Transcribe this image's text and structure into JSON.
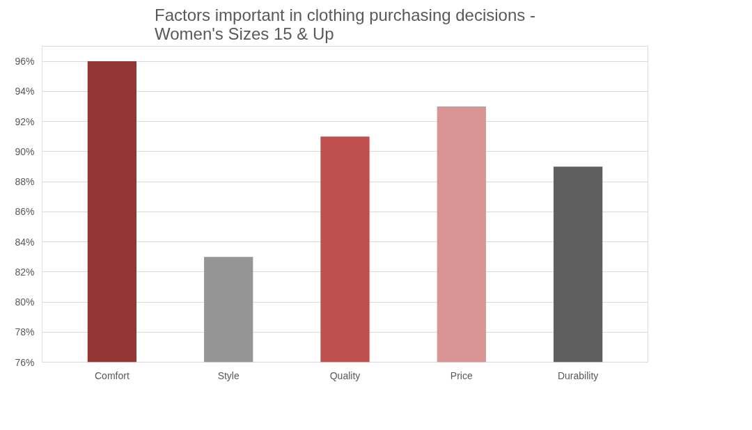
{
  "chart_data": {
    "type": "bar",
    "title": "Factors important in clothing purchasing decisions -\nWomen's Sizes 15 & Up",
    "categories": [
      "Comfort",
      "Style",
      "Quality",
      "Price",
      "Durability"
    ],
    "values": [
      96,
      83,
      91,
      93,
      89
    ],
    "colors": [
      "#943634",
      "#959595",
      "#c0504d",
      "#d99594",
      "#5f5f5f"
    ],
    "ylim": [
      76,
      97
    ],
    "yticks": [
      {
        "value": 76,
        "label": "76%"
      },
      {
        "value": 78,
        "label": "78%"
      },
      {
        "value": 80,
        "label": "80%"
      },
      {
        "value": 82,
        "label": "82%"
      },
      {
        "value": 84,
        "label": "84%"
      },
      {
        "value": 86,
        "label": "86%"
      },
      {
        "value": 88,
        "label": "88%"
      },
      {
        "value": 90,
        "label": "90%"
      },
      {
        "value": 92,
        "label": "92%"
      },
      {
        "value": 94,
        "label": "94%"
      },
      {
        "value": 96,
        "label": "96%"
      }
    ],
    "grid": "y"
  }
}
